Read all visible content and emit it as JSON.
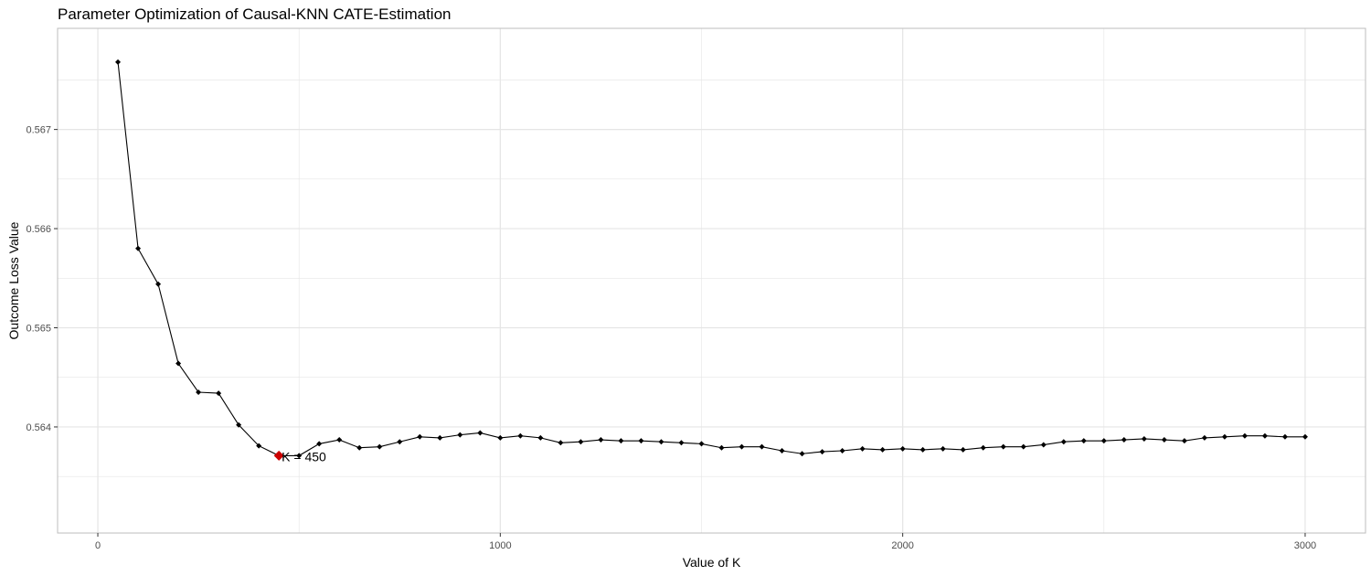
{
  "chart_data": {
    "type": "line",
    "title": "Parameter Optimization of Causal-KNN CATE-Estimation",
    "xlabel": "Value of K",
    "ylabel": "Outcome Loss Value",
    "xlim": [
      -100,
      3150
    ],
    "ylim": [
      0.56293,
      0.56802
    ],
    "x_major_ticks": [
      0,
      1000,
      2000,
      3000
    ],
    "x_minor_ticks": [
      500,
      1500,
      2500
    ],
    "y_major_ticks": [
      0.564,
      0.565,
      0.566,
      0.567
    ],
    "y_minor_ticks": [
      0.5635,
      0.5645,
      0.5655,
      0.5665,
      0.5675
    ],
    "x_tick_labels": [
      "0",
      "1000",
      "2000",
      "3000"
    ],
    "y_tick_labels": [
      "0.564",
      "0.565",
      "0.566",
      "0.567"
    ],
    "grid": true,
    "legend": "none",
    "colors": {
      "line": "#000000",
      "point": "#000000",
      "highlight": "#cc0000",
      "grid": "#e5e5e5",
      "panel_border": "#bdbdbd",
      "tick_text": "#4d4d4d"
    },
    "series": [
      {
        "x": [
          50,
          100,
          150,
          200,
          250,
          300,
          350,
          400,
          450,
          500,
          550,
          600,
          650,
          700,
          750,
          800,
          850,
          900,
          950,
          1000,
          1050,
          1100,
          1150,
          1200,
          1250,
          1300,
          1350,
          1400,
          1450,
          1500,
          1550,
          1600,
          1650,
          1700,
          1750,
          1800,
          1850,
          1900,
          1950,
          2000,
          2050,
          2100,
          2150,
          2200,
          2250,
          2300,
          2350,
          2400,
          2450,
          2500,
          2550,
          2600,
          2650,
          2700,
          2750,
          2800,
          2850,
          2900,
          2950,
          3000
        ],
        "y": [
          0.56768,
          0.5658,
          0.56544,
          0.56464,
          0.56435,
          0.56434,
          0.56402,
          0.56381,
          0.56371,
          0.56371,
          0.56383,
          0.56387,
          0.56379,
          0.5638,
          0.56385,
          0.5639,
          0.56389,
          0.56392,
          0.56394,
          0.56389,
          0.56391,
          0.56389,
          0.56384,
          0.56385,
          0.56387,
          0.56386,
          0.56386,
          0.56385,
          0.56384,
          0.56383,
          0.56379,
          0.5638,
          0.5638,
          0.56376,
          0.56373,
          0.56375,
          0.56376,
          0.56378,
          0.56377,
          0.56378,
          0.56377,
          0.56378,
          0.56377,
          0.56379,
          0.5638,
          0.5638,
          0.56382,
          0.56385,
          0.56386,
          0.56386,
          0.56387,
          0.56388,
          0.56387,
          0.56386,
          0.56389,
          0.5639,
          0.56391,
          0.56391,
          0.5639,
          0.5639
        ]
      }
    ],
    "highlight_point": {
      "x": 450,
      "y": 0.56371
    },
    "annotation": {
      "text": "K =  450",
      "x": 450,
      "y": 0.56371
    }
  }
}
